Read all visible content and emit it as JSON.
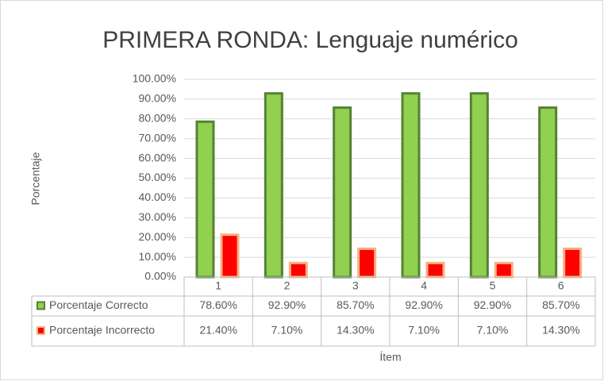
{
  "chart_data": {
    "type": "bar",
    "title": "PRIMERA RONDA: Lenguaje numérico",
    "y_label": "Porcentaje",
    "x_label": "Ítem",
    "categories": [
      "1",
      "2",
      "3",
      "4",
      "5",
      "6"
    ],
    "series": [
      {
        "name": "Porcentaje Correcto",
        "color": "#92d050",
        "border": "#548235",
        "values": [
          78.6,
          92.9,
          85.7,
          92.9,
          92.9,
          85.7
        ],
        "value_labels": [
          "78.60%",
          "92.90%",
          "85.70%",
          "92.90%",
          "92.90%",
          "85.70%"
        ]
      },
      {
        "name": "Porcentaje Incorrecto",
        "color": "#ff0000",
        "border": "#f4b183",
        "values": [
          21.4,
          7.1,
          14.3,
          7.1,
          7.1,
          14.3
        ],
        "value_labels": [
          "21.40%",
          "7.10%",
          "14.30%",
          "7.10%",
          "7.10%",
          "14.30%"
        ]
      }
    ],
    "ylim": [
      0,
      100
    ],
    "yticks": [
      {
        "value": 0,
        "label": "0.00%"
      },
      {
        "value": 10,
        "label": "10.00%"
      },
      {
        "value": 20,
        "label": "20.00%"
      },
      {
        "value": 30,
        "label": "30.00%"
      },
      {
        "value": 40,
        "label": "40.00%"
      },
      {
        "value": 50,
        "label": "50.00%"
      },
      {
        "value": 60,
        "label": "60.00%"
      },
      {
        "value": 70,
        "label": "70.00%"
      },
      {
        "value": 80,
        "label": "80.00%"
      },
      {
        "value": 90,
        "label": "90.00%"
      },
      {
        "value": 100,
        "label": "100.00%"
      }
    ],
    "grid": true,
    "data_table": true
  }
}
